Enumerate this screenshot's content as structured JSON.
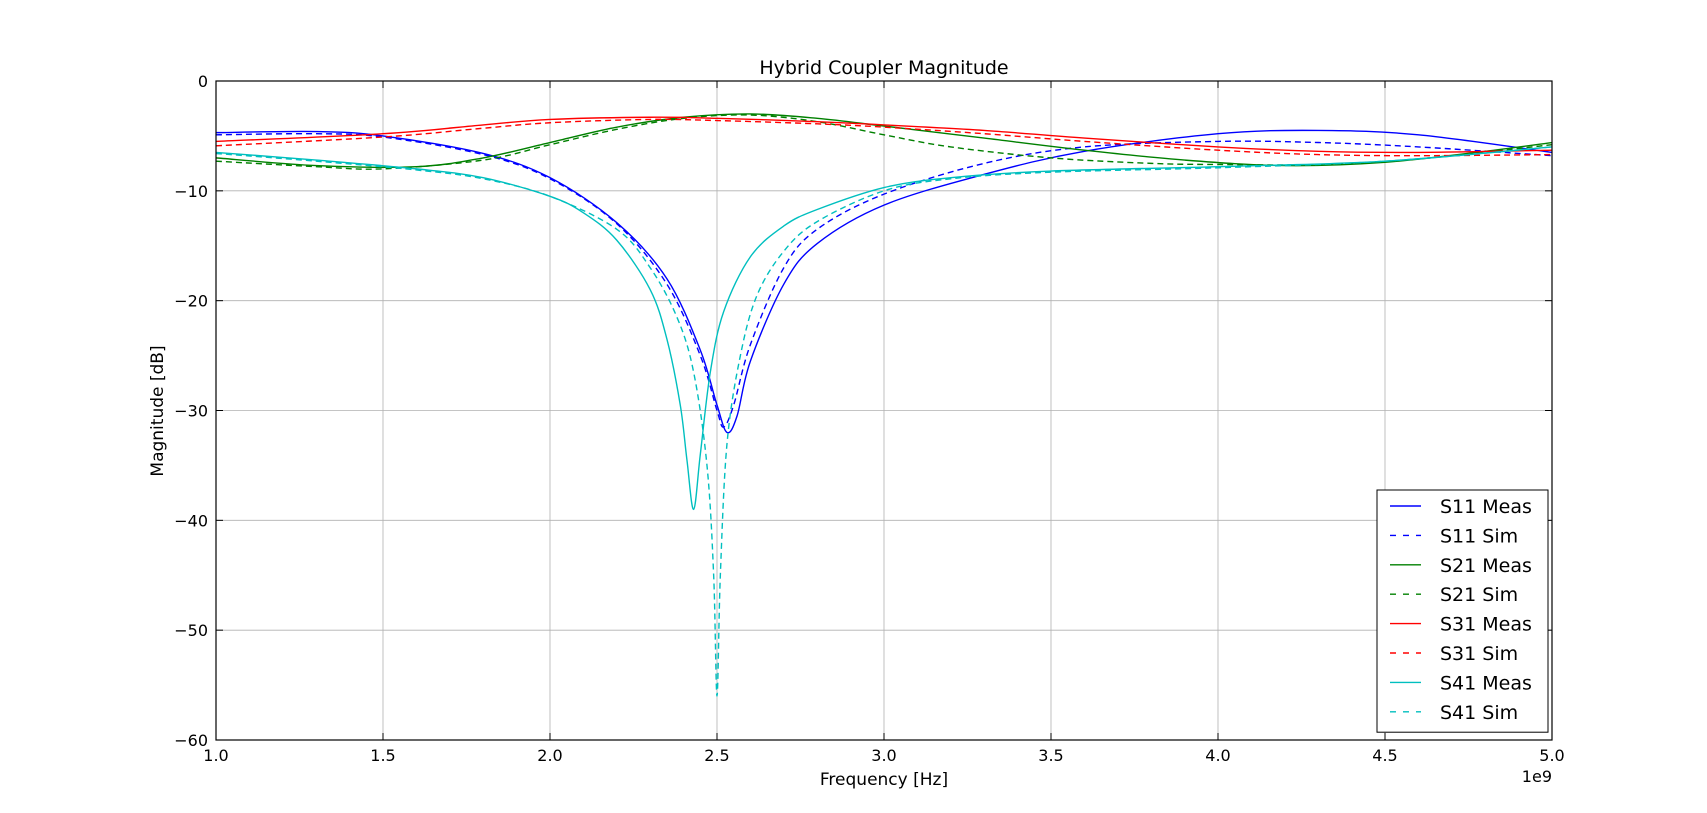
{
  "chart_data": {
    "type": "line",
    "title": "Hybrid Coupler Magnitude",
    "xlabel": "Frequency [Hz]",
    "ylabel": "Magnitude [dB]",
    "x_offset_label": "1e9",
    "xlim": [
      1.0,
      5.0
    ],
    "ylim": [
      -60,
      0
    ],
    "x_ticks": [
      "1.0",
      "1.5",
      "2.0",
      "2.5",
      "3.0",
      "3.5",
      "4.0",
      "4.5",
      "5.0"
    ],
    "y_ticks": [
      "0",
      "−10",
      "−20",
      "−30",
      "−40",
      "−50",
      "−60"
    ],
    "grid": true,
    "legend_position": "bottom-right",
    "series": [
      {
        "name": "S11 Meas",
        "color": "#0000ff",
        "dashed": false,
        "x": [
          1.0,
          1.3,
          1.5,
          1.8,
          2.0,
          2.2,
          2.35,
          2.45,
          2.5,
          2.53,
          2.56,
          2.6,
          2.7,
          2.8,
          3.0,
          3.3,
          3.6,
          4.0,
          4.3,
          4.6,
          5.0
        ],
        "y": [
          -4.7,
          -4.6,
          -5.0,
          -6.6,
          -8.8,
          -12.9,
          -18.0,
          -24.5,
          -29.5,
          -32.0,
          -30.5,
          -25.5,
          -18.5,
          -14.8,
          -11.3,
          -8.5,
          -6.4,
          -4.8,
          -4.5,
          -4.9,
          -6.5
        ]
      },
      {
        "name": "S11 Sim",
        "color": "#0000ff",
        "dashed": true,
        "x": [
          1.0,
          1.3,
          1.5,
          1.8,
          2.0,
          2.2,
          2.35,
          2.45,
          2.5,
          2.52,
          2.55,
          2.6,
          2.7,
          2.8,
          3.0,
          3.3,
          3.6,
          4.0,
          4.3,
          4.6,
          5.0
        ],
        "y": [
          -4.9,
          -4.8,
          -5.1,
          -6.7,
          -8.9,
          -13.0,
          -18.5,
          -25.0,
          -30.0,
          -31.5,
          -29.5,
          -24.0,
          -17.0,
          -13.5,
          -10.3,
          -7.5,
          -6.0,
          -5.5,
          -5.6,
          -6.0,
          -6.8
        ]
      },
      {
        "name": "S21 Meas",
        "color": "#008000",
        "dashed": false,
        "x": [
          1.0,
          1.3,
          1.6,
          1.8,
          2.0,
          2.2,
          2.4,
          2.6,
          2.8,
          3.0,
          3.3,
          3.6,
          3.9,
          4.2,
          4.5,
          4.8,
          5.0
        ],
        "y": [
          -7.0,
          -7.7,
          -7.8,
          -7.0,
          -5.6,
          -4.2,
          -3.3,
          -3.0,
          -3.4,
          -4.1,
          -5.2,
          -6.3,
          -7.2,
          -7.7,
          -7.4,
          -6.4,
          -5.6
        ]
      },
      {
        "name": "S21 Sim",
        "color": "#008000",
        "dashed": true,
        "x": [
          1.0,
          1.3,
          1.5,
          1.8,
          2.0,
          2.2,
          2.4,
          2.6,
          2.8,
          3.0,
          3.2,
          3.5,
          3.8,
          4.0,
          4.3,
          4.6,
          5.0
        ],
        "y": [
          -7.3,
          -7.8,
          -8.0,
          -7.2,
          -5.8,
          -4.4,
          -3.4,
          -3.1,
          -3.7,
          -4.9,
          -6.0,
          -7.0,
          -7.5,
          -7.6,
          -7.6,
          -7.1,
          -5.8
        ]
      },
      {
        "name": "S31 Meas",
        "color": "#ff0000",
        "dashed": false,
        "x": [
          1.0,
          1.5,
          1.8,
          2.0,
          2.3,
          2.5,
          2.8,
          3.0,
          3.3,
          3.6,
          4.0,
          4.3,
          4.6,
          5.0
        ],
        "y": [
          -5.5,
          -4.8,
          -4.0,
          -3.5,
          -3.3,
          -3.4,
          -3.7,
          -4.0,
          -4.5,
          -5.2,
          -6.0,
          -6.4,
          -6.5,
          -6.3
        ]
      },
      {
        "name": "S31 Sim",
        "color": "#ff0000",
        "dashed": true,
        "x": [
          1.0,
          1.5,
          1.8,
          2.0,
          2.3,
          2.5,
          2.8,
          3.0,
          3.3,
          3.6,
          4.0,
          4.3,
          4.6,
          5.0
        ],
        "y": [
          -5.9,
          -5.1,
          -4.3,
          -3.8,
          -3.5,
          -3.6,
          -3.9,
          -4.2,
          -4.8,
          -5.5,
          -6.3,
          -6.7,
          -6.8,
          -6.7
        ]
      },
      {
        "name": "S41 Meas",
        "color": "#00bfbf",
        "dashed": false,
        "x": [
          1.0,
          1.3,
          1.6,
          1.8,
          2.0,
          2.1,
          2.2,
          2.3,
          2.35,
          2.39,
          2.41,
          2.43,
          2.45,
          2.48,
          2.52,
          2.6,
          2.7,
          2.8,
          3.0,
          3.2,
          3.5,
          4.0,
          4.5,
          5.0
        ],
        "y": [
          -6.5,
          -7.2,
          -8.0,
          -8.8,
          -10.5,
          -12.0,
          -14.5,
          -19.0,
          -23.5,
          -29.5,
          -34.5,
          -39.0,
          -34.0,
          -26.5,
          -21.0,
          -16.0,
          -13.2,
          -11.7,
          -9.7,
          -8.8,
          -8.2,
          -7.8,
          -7.3,
          -6.0
        ]
      },
      {
        "name": "S41 Sim",
        "color": "#00bfbf",
        "dashed": true,
        "x": [
          1.0,
          1.3,
          1.6,
          1.8,
          2.0,
          2.2,
          2.3,
          2.38,
          2.43,
          2.47,
          2.49,
          2.5,
          2.51,
          2.53,
          2.57,
          2.62,
          2.7,
          2.8,
          3.0,
          3.2,
          3.5,
          4.0,
          4.5,
          5.0
        ],
        "y": [
          -6.6,
          -7.3,
          -8.1,
          -8.9,
          -10.5,
          -13.5,
          -17.0,
          -21.5,
          -26.5,
          -35.0,
          -45.0,
          -56.0,
          -45.0,
          -33.0,
          -25.0,
          -19.5,
          -15.5,
          -12.8,
          -10.0,
          -8.9,
          -8.3,
          -7.9,
          -7.3,
          -6.0
        ]
      }
    ]
  }
}
